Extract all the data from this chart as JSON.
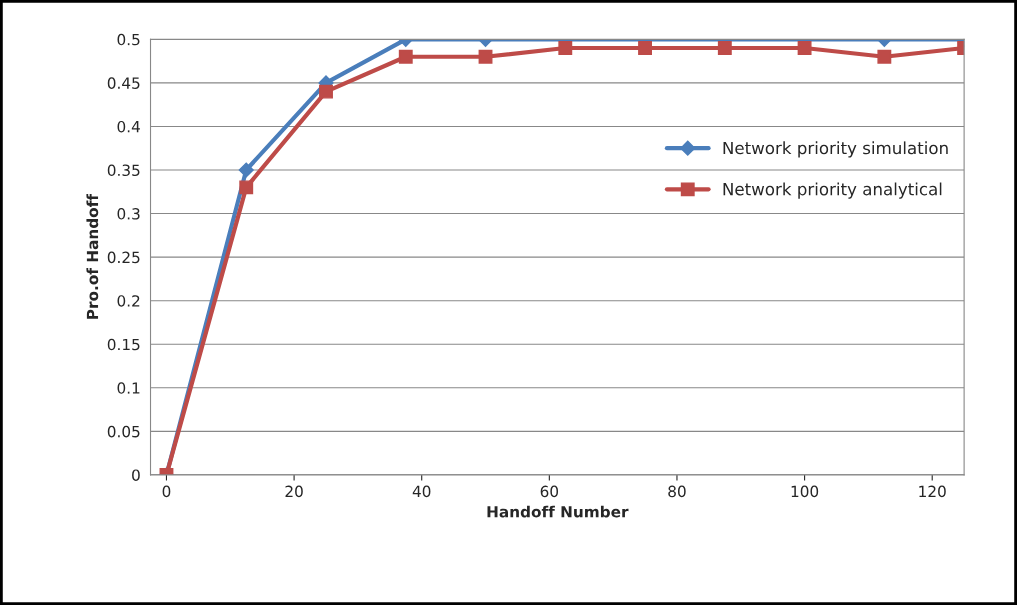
{
  "chart_data": {
    "type": "line",
    "xlabel": "Handoff Number",
    "ylabel": "Pro.of Handoff",
    "x": [
      0,
      12.5,
      25,
      37.5,
      50,
      62.5,
      75,
      87.5,
      100,
      112.5,
      125
    ],
    "series": [
      {
        "name": "Network priority simulation",
        "color": "#4a7ebb",
        "marker": "diamond",
        "values": [
          0,
          0.35,
          0.45,
          0.5,
          0.5,
          0.5,
          0.5,
          0.5,
          0.5,
          0.5,
          0.5
        ]
      },
      {
        "name": "Network priority analytical",
        "color": "#be4b48",
        "marker": "square",
        "values": [
          0,
          0.33,
          0.44,
          0.48,
          0.48,
          0.49,
          0.49,
          0.49,
          0.49,
          0.48,
          0.49
        ]
      }
    ],
    "xlim": [
      -2.5,
      125
    ],
    "xticks": [
      0,
      20,
      40,
      60,
      80,
      100,
      120
    ],
    "ylim": [
      0,
      0.5
    ],
    "yticks": [
      0,
      0.05,
      0.1,
      0.15,
      0.2,
      0.25,
      0.3,
      0.35,
      0.4,
      0.45,
      0.5
    ],
    "grid": "y",
    "legend": "right",
    "line_style": "solid"
  }
}
